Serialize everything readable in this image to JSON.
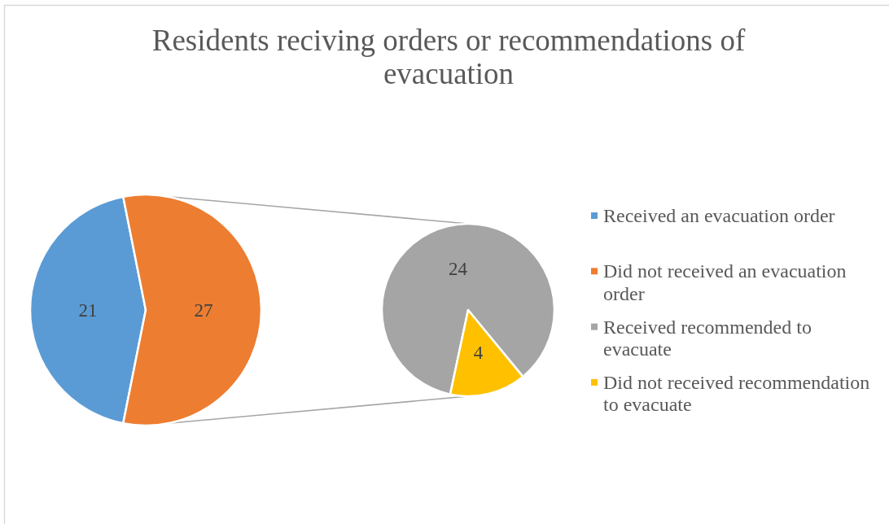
{
  "chart_data": [
    {
      "type": "pie",
      "title": "Residents reciving orders or recommendations of evacuation",
      "categories": [
        "Received an evacuation order",
        "Did not received an evacuation order"
      ],
      "values": [
        21,
        27
      ],
      "colors": [
        "#5b9bd5",
        "#ed7d31"
      ],
      "data_labels": true,
      "legend": "right"
    },
    {
      "type": "pie",
      "categories": [
        "Received recommended to evacuate",
        "Did not received recommendation to evacuate"
      ],
      "values": [
        24,
        4
      ],
      "colors": [
        "#a5a5a5",
        "#ffc000"
      ],
      "data_labels": true,
      "legend": "right"
    }
  ]
}
